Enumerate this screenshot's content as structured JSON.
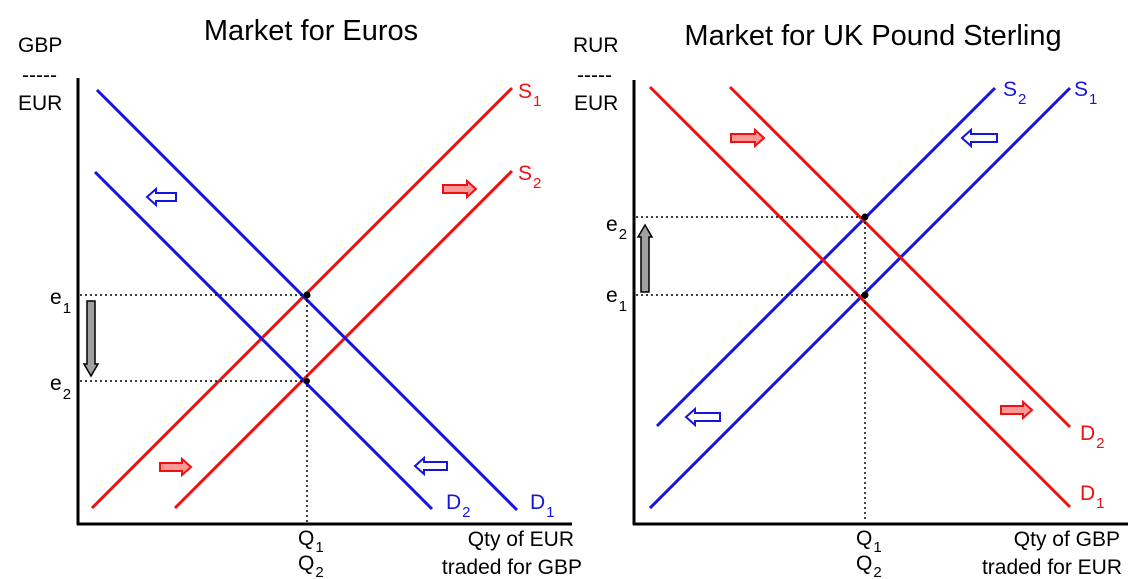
{
  "colors": {
    "red": "#ee1111",
    "blue": "#1515dd",
    "black": "#000000",
    "arrow_fill": "#ff9999",
    "arrow_fill_blue": "#ffffff",
    "shift_arrow": "#a0a0a0"
  },
  "chart_data": [
    {
      "type": "line",
      "title": "Market for Euros",
      "ylabel_lines": [
        "GBP",
        "-----",
        "EUR"
      ],
      "xlabel_lines": [
        "Qty of EUR",
        "traded for GBP"
      ],
      "y_ticks": [
        {
          "main": "e",
          "sub": "1"
        },
        {
          "main": "e",
          "sub": "2"
        }
      ],
      "x_ticks": [
        {
          "main": "Q",
          "sub": "1"
        },
        {
          "main": "Q",
          "sub": "2"
        }
      ],
      "series": [
        {
          "main": "S",
          "sub": "1",
          "color": "red"
        },
        {
          "main": "S",
          "sub": "2",
          "color": "red"
        },
        {
          "main": "D",
          "sub": "1",
          "color": "blue"
        },
        {
          "main": "D",
          "sub": "2",
          "color": "blue"
        }
      ],
      "shift": "e1 to e2 (down)"
    },
    {
      "type": "line",
      "title": "Market for UK Pound Sterling",
      "ylabel_lines": [
        "RUR",
        "-----",
        "EUR"
      ],
      "xlabel_lines": [
        "Qty of GBP",
        "traded for EUR"
      ],
      "y_ticks": [
        {
          "main": "e",
          "sub": "2"
        },
        {
          "main": "e",
          "sub": "1"
        }
      ],
      "x_ticks": [
        {
          "main": "Q",
          "sub": "1"
        },
        {
          "main": "Q",
          "sub": "2"
        }
      ],
      "series": [
        {
          "main": "S",
          "sub": "2",
          "color": "blue"
        },
        {
          "main": "S",
          "sub": "1",
          "color": "blue"
        },
        {
          "main": "D",
          "sub": "2",
          "color": "red"
        },
        {
          "main": "D",
          "sub": "1",
          "color": "red"
        }
      ],
      "shift": "e1 to e2 (up)"
    }
  ]
}
